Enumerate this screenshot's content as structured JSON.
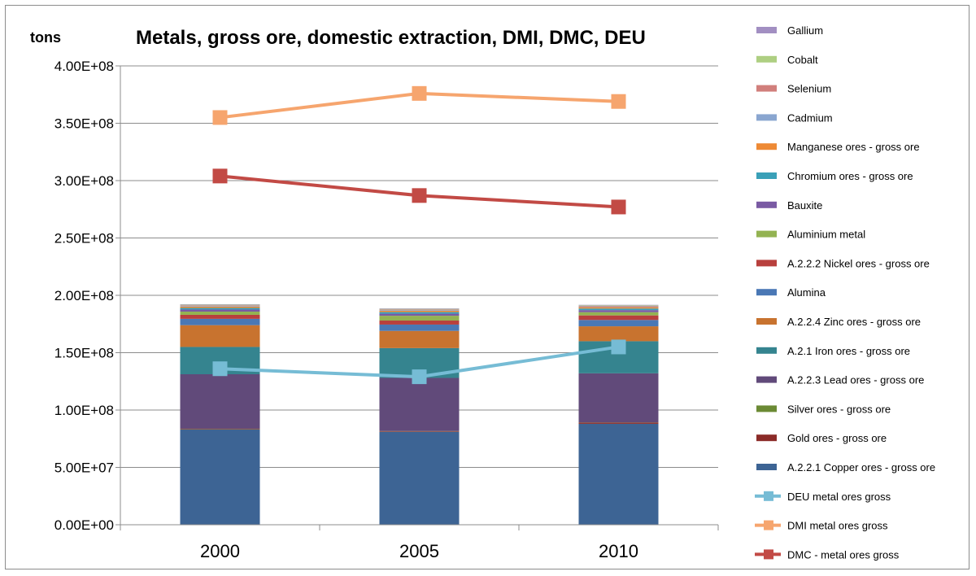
{
  "chart_data": {
    "type": "bar",
    "title": "Metals, gross ore, domestic extraction, DMI, DMC, DEU",
    "ylabel": "tons",
    "xlabel": "",
    "categories": [
      "2000",
      "2005",
      "2010"
    ],
    "ylim": [
      0,
      400000000
    ],
    "yticks": [
      0,
      50000000,
      100000000,
      150000000,
      200000000,
      250000000,
      300000000,
      350000000,
      400000000
    ],
    "ytick_labels": [
      "0.00E+00",
      "5.00E+07",
      "1.00E+08",
      "1.50E+08",
      "2.00E+08",
      "2.50E+08",
      "3.00E+08",
      "3.50E+08",
      "4.00E+08"
    ],
    "grid": true,
    "legend_position": "right",
    "stacked_series": [
      {
        "name": "A.2.2.1 Copper ores - gross ore",
        "color": "#3d6494",
        "values": [
          83000000,
          81000000,
          88000000
        ]
      },
      {
        "name": "Gold ores - gross ore",
        "color": "#8b2b28",
        "values": [
          500000,
          500000,
          1000000
        ]
      },
      {
        "name": "Silver ores - gross ore",
        "color": "#6b8a34",
        "values": [
          200000,
          200000,
          200000
        ]
      },
      {
        "name": "A.2.2.3 Lead ores - gross ore",
        "color": "#614a7a",
        "values": [
          47500000,
          46300000,
          42800000
        ]
      },
      {
        "name": "A.2.1 Iron ores - gross ore",
        "color": "#35848f",
        "values": [
          23800000,
          26000000,
          28000000
        ]
      },
      {
        "name": "A.2.2.4 Zinc ores - gross ore",
        "color": "#c8732f",
        "values": [
          19000000,
          15000000,
          13000000
        ]
      },
      {
        "name": "Alumina",
        "color": "#4a78b5",
        "values": [
          5500000,
          5500000,
          5500000
        ]
      },
      {
        "name": "A.2.2.2 Nickel ores - gross ore",
        "color": "#b8403d",
        "values": [
          3500000,
          3500000,
          4000000
        ]
      },
      {
        "name": "Aluminium metal",
        "color": "#93b352",
        "values": [
          2800000,
          4200000,
          2800000
        ]
      },
      {
        "name": "Bauxite",
        "color": "#7a5aa3",
        "values": [
          1800000,
          1800000,
          1800000
        ]
      },
      {
        "name": "Chromium ores - gross ore",
        "color": "#3aa0b8",
        "values": [
          1400000,
          1400000,
          1400000
        ]
      },
      {
        "name": "Manganese ores - gross ore",
        "color": "#ee8a35",
        "values": [
          1200000,
          1200000,
          1200000
        ]
      },
      {
        "name": "Cadmium",
        "color": "#8aa6d0",
        "values": [
          600000,
          600000,
          600000
        ]
      },
      {
        "name": "Selenium",
        "color": "#d17f7c",
        "values": [
          500000,
          500000,
          500000
        ]
      },
      {
        "name": "Cobalt",
        "color": "#aecf82",
        "values": [
          500000,
          500000,
          500000
        ]
      },
      {
        "name": "Gallium",
        "color": "#a28fc2",
        "values": [
          400000,
          400000,
          400000
        ]
      }
    ],
    "line_series": [
      {
        "name": "DEU metal ores gross",
        "color": "#76bcd5",
        "values": [
          136000000,
          129000000,
          155000000
        ]
      },
      {
        "name": "DMI metal ores gross",
        "color": "#f6a56e",
        "values": [
          355000000,
          376000000,
          369000000
        ]
      },
      {
        "name": "DMC - metal ores gross",
        "color": "#c24a45",
        "values": [
          304000000,
          287000000,
          277000000
        ]
      }
    ],
    "legend_order": [
      "Gallium",
      "Cobalt",
      "Selenium",
      "Cadmium",
      "Manganese ores - gross ore",
      "Chromium ores - gross ore",
      "Bauxite",
      "Aluminium metal",
      "A.2.2.2 Nickel ores - gross ore",
      "Alumina",
      "A.2.2.4 Zinc ores - gross ore",
      "A.2.1 Iron ores - gross ore",
      "A.2.2.3 Lead ores - gross ore",
      "Silver ores - gross ore",
      "Gold ores - gross ore",
      "A.2.2.1 Copper ores - gross ore",
      "DEU metal ores gross",
      "DMI metal ores gross",
      "DMC - metal ores gross"
    ]
  }
}
